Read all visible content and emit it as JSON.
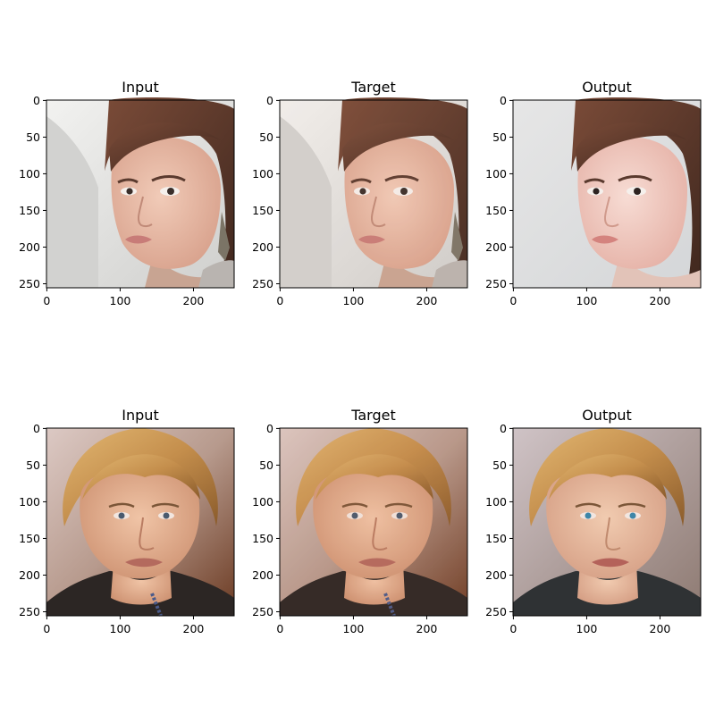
{
  "figure": {
    "rows": [
      {
        "panels": [
          {
            "title": "Input",
            "subject": "young woman with brown hair, head turned right, earring, light grey background"
          },
          {
            "title": "Target",
            "subject": "same woman, slightly warmer tones"
          },
          {
            "title": "Output",
            "subject": "generated reconstruction, smoother skin, soft background"
          }
        ]
      },
      {
        "panels": [
          {
            "title": "Input",
            "subject": "woman with short blonde bob, dark jacket, warm brown background"
          },
          {
            "title": "Target",
            "subject": "same woman, slightly warmer tones"
          },
          {
            "title": "Output",
            "subject": "generated reconstruction, blue eyes, smoother skin"
          }
        ]
      }
    ],
    "x_ticks": [
      "0",
      "100",
      "200"
    ],
    "y_ticks": [
      "0",
      "50",
      "100",
      "150",
      "200",
      "250"
    ],
    "tick_values_x": [
      0,
      100,
      200
    ],
    "tick_values_y": [
      0,
      50,
      100,
      150,
      200,
      250
    ],
    "image_range": [
      0,
      256
    ]
  }
}
